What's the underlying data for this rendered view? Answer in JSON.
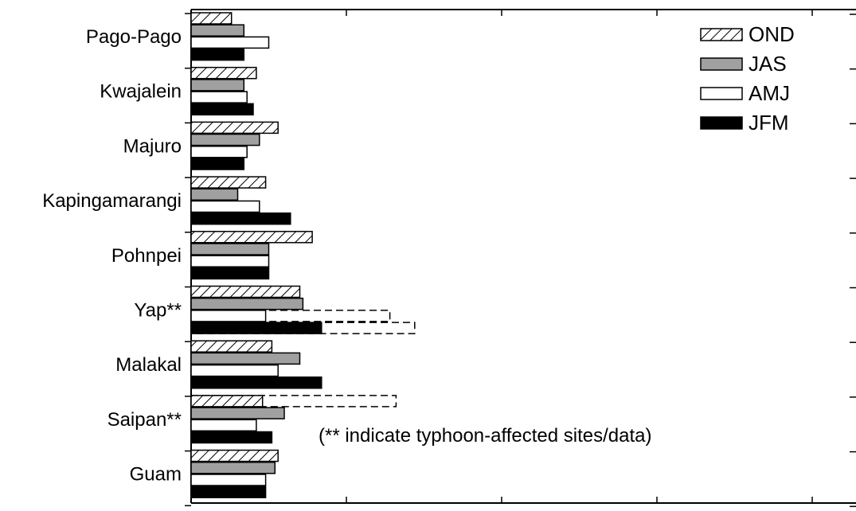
{
  "chart_data": {
    "type": "bar",
    "orientation": "horizontal",
    "categories": [
      "Pago-Pago",
      "Kwajalein",
      "Majuro",
      "Kapingamarangi",
      "Pohnpei",
      "Yap**",
      "Malakal",
      "Saipan**",
      "Guam"
    ],
    "series": [
      {
        "name": "OND",
        "fill": "hatched",
        "values": [
          13,
          21,
          28,
          24,
          39,
          35,
          26,
          23,
          28
        ]
      },
      {
        "name": "JAS",
        "fill": "#a0a0a0",
        "values": [
          17,
          17,
          22,
          15,
          25,
          36,
          35,
          30,
          27
        ]
      },
      {
        "name": "AMJ",
        "fill": "#ffffff",
        "values": [
          25,
          18,
          18,
          22,
          25,
          24,
          28,
          21,
          24
        ]
      },
      {
        "name": "JFM",
        "fill": "#000000",
        "values": [
          17,
          20,
          17,
          32,
          25,
          42,
          42,
          26,
          24
        ]
      }
    ],
    "typhoon_affected": [
      {
        "category": "Yap**",
        "series": "AMJ",
        "value": 64
      },
      {
        "category": "Yap**",
        "series": "JFM",
        "value": 72
      },
      {
        "category": "Saipan**",
        "series": "OND",
        "value": 66
      }
    ],
    "annotation": "(** indicate typhoon-affected sites/data)",
    "xlim": [
      0,
      220
    ],
    "legend_position": "top-right",
    "title": "",
    "xlabel": "",
    "ylabel": ""
  }
}
